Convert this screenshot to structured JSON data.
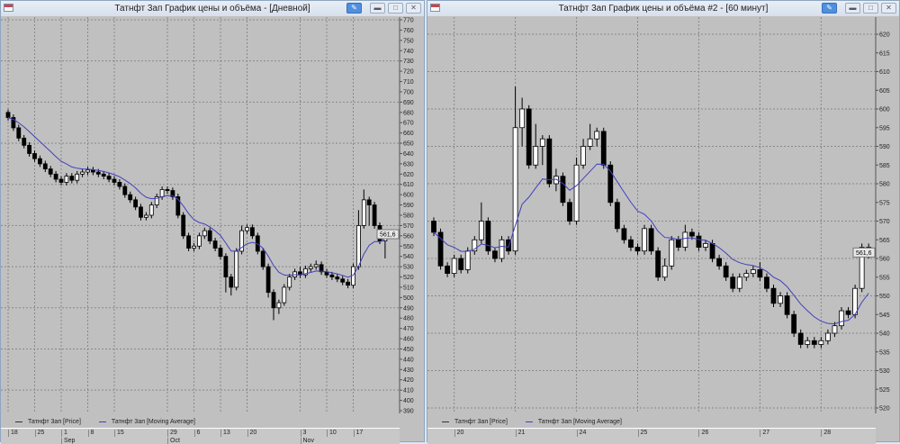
{
  "windows": [
    {
      "title": "Татнфт 3ап График цены и объёма - [Дневной]",
      "legend": [
        {
          "label": "Татнфт 3ап [Price]",
          "color": "#333333"
        },
        {
          "label": "Татнфт 3ап [Moving Average]",
          "color": "#4040c0"
        }
      ],
      "price_tag": "561,6",
      "chart_data": {
        "type": "candlestick",
        "ylim": [
          390,
          770
        ],
        "y_ticks": [
          770,
          760,
          750,
          740,
          730,
          720,
          710,
          700,
          690,
          680,
          670,
          660,
          650,
          640,
          630,
          620,
          610,
          600,
          590,
          580,
          570,
          560,
          550,
          540,
          530,
          520,
          510,
          500,
          490,
          480,
          470,
          460,
          450,
          440,
          430,
          420,
          410,
          400,
          390
        ],
        "x_ticks": [
          {
            "label": "18",
            "i": 0
          },
          {
            "label": "25",
            "i": 5
          },
          {
            "label": "1",
            "i": 10
          },
          {
            "label": "8",
            "i": 15
          },
          {
            "label": "15",
            "i": 20
          },
          {
            "label": "29",
            "i": 30
          },
          {
            "label": "6",
            "i": 35
          },
          {
            "label": "13",
            "i": 40
          },
          {
            "label": "20",
            "i": 45
          },
          {
            "label": "3",
            "i": 55
          },
          {
            "label": "10",
            "i": 60
          },
          {
            "label": "17",
            "i": 65
          }
        ],
        "x_months": [
          {
            "label": "Sep",
            "i": 10
          },
          {
            "label": "Oct",
            "i": 30
          },
          {
            "label": "Nov",
            "i": 55
          }
        ],
        "series": [
          {
            "name": "Татнфт 3ап [Price]",
            "ohlc": [
              [
                680,
                683,
                672,
                675
              ],
              [
                675,
                678,
                662,
                665
              ],
              [
                665,
                668,
                652,
                655
              ],
              [
                655,
                658,
                645,
                648
              ],
              [
                648,
                651,
                637,
                640
              ],
              [
                640,
                643,
                632,
                635
              ],
              [
                635,
                638,
                627,
                630
              ],
              [
                630,
                633,
                622,
                625
              ],
              [
                625,
                628,
                617,
                620
              ],
              [
                620,
                623,
                612,
                615
              ],
              [
                615,
                618,
                609,
                612
              ],
              [
                612,
                621,
                609,
                618
              ],
              [
                618,
                621,
                611,
                614
              ],
              [
                614,
                623,
                611,
                620
              ],
              [
                620,
                625,
                617,
                622
              ],
              [
                622,
                627,
                619,
                624
              ],
              [
                624,
                627,
                619,
                622
              ],
              [
                622,
                625,
                617,
                620
              ],
              [
                620,
                623,
                615,
                618
              ],
              [
                618,
                621,
                612,
                615
              ],
              [
                615,
                618,
                609,
                612
              ],
              [
                612,
                615,
                605,
                608
              ],
              [
                608,
                611,
                597,
                600
              ],
              [
                600,
                603,
                592,
                595
              ],
              [
                595,
                598,
                585,
                588
              ],
              [
                588,
                591,
                575,
                578
              ],
              [
                578,
                583,
                575,
                580
              ],
              [
                580,
                593,
                577,
                590
              ],
              [
                590,
                601,
                587,
                598
              ],
              [
                598,
                608,
                595,
                605
              ],
              [
                605,
                608,
                601,
                604
              ],
              [
                604,
                607,
                595,
                598
              ],
              [
                598,
                601,
                577,
                580
              ],
              [
                580,
                583,
                557,
                560
              ],
              [
                560,
                563,
                545,
                548
              ],
              [
                548,
                553,
                545,
                550
              ],
              [
                550,
                563,
                547,
                560
              ],
              [
                560,
                568,
                557,
                565
              ],
              [
                565,
                568,
                552,
                555
              ],
              [
                555,
                558,
                545,
                548
              ],
              [
                548,
                551,
                537,
                540
              ],
              [
                540,
                543,
                505,
                520
              ],
              [
                520,
                523,
                502,
                510
              ],
              [
                510,
                548,
                507,
                545
              ],
              [
                545,
                570,
                542,
                565
              ],
              [
                565,
                571,
                562,
                568
              ],
              [
                568,
                571,
                557,
                560
              ],
              [
                560,
                563,
                542,
                545
              ],
              [
                545,
                548,
                527,
                530
              ],
              [
                530,
                533,
                500,
                505
              ],
              [
                505,
                508,
                478,
                490
              ],
              [
                490,
                498,
                484,
                495
              ],
              [
                495,
                513,
                492,
                510
              ],
              [
                510,
                523,
                507,
                520
              ],
              [
                520,
                528,
                517,
                525
              ],
              [
                525,
                530,
                519,
                522
              ],
              [
                522,
                531,
                519,
                528
              ],
              [
                528,
                533,
                525,
                530
              ],
              [
                530,
                536,
                527,
                532
              ],
              [
                532,
                535,
                522,
                525
              ],
              [
                525,
                528,
                519,
                522
              ],
              [
                522,
                525,
                517,
                520
              ],
              [
                520,
                523,
                515,
                518
              ],
              [
                518,
                521,
                512,
                515
              ],
              [
                515,
                518,
                509,
                512
              ],
              [
                512,
                533,
                509,
                530
              ],
              [
                530,
                585,
                527,
                570
              ],
              [
                570,
                605,
                567,
                595
              ],
              [
                595,
                598,
                570,
                590
              ],
              [
                590,
                593,
                567,
                570
              ],
              [
                570,
                573,
                552,
                555
              ],
              [
                555,
                565,
                538,
                561.6
              ]
            ]
          },
          {
            "name": "Татнфт 3ап [Moving Average]",
            "color": "#4040c0"
          }
        ]
      }
    },
    {
      "title": "Татнфт 3ап График цены и объёма #2 - [60 минут]",
      "legend": [
        {
          "label": "Татнфт 3ап [Price]",
          "color": "#333333"
        },
        {
          "label": "Татнфт 3ап [Moving Average]",
          "color": "#4040c0"
        }
      ],
      "price_tag": "561,6",
      "chart_data": {
        "type": "candlestick",
        "ylim": [
          520,
          620
        ],
        "y_ticks": [
          620,
          615,
          610,
          605,
          600,
          595,
          590,
          585,
          580,
          575,
          570,
          565,
          560,
          555,
          550,
          545,
          540,
          535,
          530,
          525,
          520
        ],
        "x_ticks": [
          {
            "label": "20",
            "i": 3
          },
          {
            "label": "21",
            "i": 12
          },
          {
            "label": "24",
            "i": 21
          },
          {
            "label": "25",
            "i": 30
          },
          {
            "label": "26",
            "i": 39
          },
          {
            "label": "27",
            "i": 48
          },
          {
            "label": "28",
            "i": 57
          }
        ],
        "x_months": [],
        "series": [
          {
            "name": "Татнфт 3ап [Price]",
            "ohlc": [
              [
                570,
                571,
                566,
                567
              ],
              [
                567,
                568,
                557,
                558
              ],
              [
                558,
                559,
                555,
                556
              ],
              [
                556,
                561,
                555,
                560
              ],
              [
                560,
                561,
                556,
                557
              ],
              [
                557,
                563,
                556,
                562
              ],
              [
                562,
                566,
                561,
                565
              ],
              [
                565,
                575,
                564,
                570
              ],
              [
                570,
                571,
                561,
                562
              ],
              [
                562,
                563,
                559,
                560
              ],
              [
                560,
                566,
                559,
                565
              ],
              [
                565,
                566,
                561,
                562
              ],
              [
                562,
                606,
                561,
                595
              ],
              [
                595,
                603,
                590,
                600
              ],
              [
                600,
                601,
                584,
                585
              ],
              [
                585,
                596,
                584,
                590
              ],
              [
                590,
                593,
                585,
                592
              ],
              [
                592,
                593,
                579,
                580
              ],
              [
                580,
                584,
                578,
                582
              ],
              [
                582,
                583,
                574,
                575
              ],
              [
                575,
                576,
                569,
                570
              ],
              [
                570,
                587,
                569,
                585
              ],
              [
                585,
                592,
                584,
                590
              ],
              [
                590,
                596,
                589,
                592
              ],
              [
                592,
                595,
                590,
                594
              ],
              [
                594,
                595,
                584,
                585
              ],
              [
                585,
                586,
                574,
                575
              ],
              [
                575,
                576,
                567,
                568
              ],
              [
                568,
                569,
                564,
                565
              ],
              [
                565,
                566,
                562,
                563
              ],
              [
                563,
                564,
                561,
                562
              ],
              [
                562,
                569,
                561,
                568
              ],
              [
                568,
                569,
                561,
                562
              ],
              [
                562,
                563,
                554,
                555
              ],
              [
                555,
                560,
                554,
                558
              ],
              [
                558,
                566,
                557,
                565
              ],
              [
                565,
                566,
                562,
                563
              ],
              [
                563,
                569,
                562,
                567
              ],
              [
                567,
                568,
                565,
                566
              ],
              [
                566,
                567,
                562,
                563
              ],
              [
                563,
                565,
                562,
                564
              ],
              [
                564,
                565,
                559,
                560
              ],
              [
                560,
                561,
                557,
                558
              ],
              [
                558,
                559,
                554,
                555
              ],
              [
                555,
                556,
                551,
                552
              ],
              [
                552,
                556,
                551,
                555
              ],
              [
                555,
                557,
                554,
                556
              ],
              [
                556,
                558,
                555,
                557
              ],
              [
                557,
                559,
                554,
                555
              ],
              [
                555,
                556,
                551,
                552
              ],
              [
                552,
                553,
                547,
                548
              ],
              [
                548,
                551,
                547,
                550
              ],
              [
                550,
                551,
                544,
                545
              ],
              [
                545,
                546,
                539,
                540
              ],
              [
                540,
                541,
                536,
                537
              ],
              [
                537,
                539,
                536,
                538
              ],
              [
                538,
                539,
                536,
                537
              ],
              [
                537,
                539,
                536,
                538
              ],
              [
                538,
                541,
                537,
                540
              ],
              [
                540,
                543,
                539,
                542
              ],
              [
                542,
                547,
                541,
                546
              ],
              [
                546,
                547,
                544,
                545
              ],
              [
                545,
                553,
                544,
                552
              ],
              [
                552,
                564,
                551,
                563
              ],
              [
                563,
                564,
                560,
                561.6
              ]
            ]
          },
          {
            "name": "Татнфт 3ап [Moving Average]",
            "color": "#4040c0"
          }
        ]
      }
    }
  ]
}
